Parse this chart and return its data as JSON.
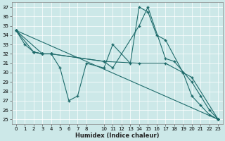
{
  "xlabel": "Humidex (Indice chaleur)",
  "bg_color": "#cce8e8",
  "grid_color": "#ffffff",
  "line_color": "#1e6b6b",
  "xlim": [
    -0.5,
    23.5
  ],
  "ylim": [
    24.5,
    37.5
  ],
  "yticks": [
    25,
    26,
    27,
    28,
    29,
    30,
    31,
    32,
    33,
    34,
    35,
    36,
    37
  ],
  "xticks": [
    0,
    1,
    2,
    3,
    4,
    5,
    6,
    7,
    8,
    10,
    11,
    12,
    13,
    14,
    15,
    16,
    17,
    18,
    19,
    20,
    21,
    22,
    23
  ],
  "xtick_labels": [
    "0",
    "1",
    "2",
    "3",
    "4",
    "5",
    "6",
    "7",
    "8",
    "10",
    "11",
    "12",
    "13",
    "14",
    "15",
    "16",
    "17",
    "18",
    "19",
    "20",
    "21",
    "22",
    "23"
  ],
  "series": [
    {
      "x": [
        0,
        1,
        2,
        3,
        4
      ],
      "y": [
        34.5,
        33.0,
        32.2,
        32.0,
        32.0
      ]
    },
    {
      "x": [
        2,
        3,
        4,
        5,
        6,
        7,
        8,
        10,
        11,
        13,
        14,
        15,
        16,
        17,
        19,
        20,
        21,
        22,
        23
      ],
      "y": [
        32.2,
        32.0,
        32.0,
        30.5,
        27.0,
        27.5,
        31.0,
        30.5,
        33.0,
        31.0,
        37.0,
        36.5,
        34.0,
        33.5,
        30.0,
        27.5,
        26.5,
        25.5,
        25.0
      ]
    },
    {
      "x": [
        0,
        2,
        3,
        4,
        10,
        11,
        14,
        15,
        17,
        18,
        20,
        21,
        22,
        23
      ],
      "y": [
        34.5,
        32.2,
        32.0,
        32.0,
        31.2,
        30.5,
        35.0,
        37.0,
        31.5,
        31.2,
        29.0,
        27.5,
        26.0,
        25.0
      ]
    },
    {
      "x": [
        0,
        3,
        4,
        10,
        14,
        17,
        19,
        20,
        23
      ],
      "y": [
        34.5,
        32.0,
        32.0,
        31.2,
        31.0,
        31.0,
        30.0,
        29.5,
        25.0
      ]
    },
    {
      "x": [
        0,
        23
      ],
      "y": [
        34.5,
        25.0
      ]
    }
  ]
}
